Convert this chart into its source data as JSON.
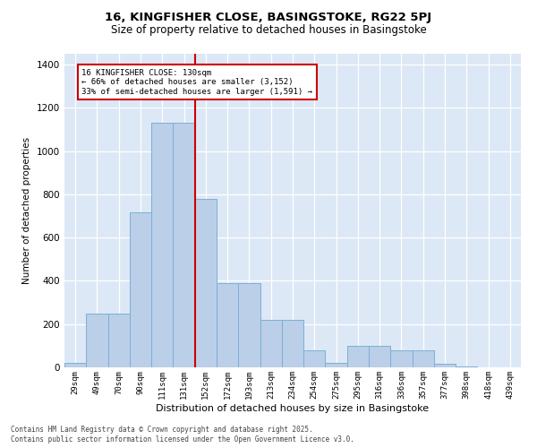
{
  "title1": "16, KINGFISHER CLOSE, BASINGSTOKE, RG22 5PJ",
  "title2": "Size of property relative to detached houses in Basingstoke",
  "xlabel": "Distribution of detached houses by size in Basingstoke",
  "ylabel": "Number of detached properties",
  "categories": [
    "29sqm",
    "49sqm",
    "70sqm",
    "90sqm",
    "111sqm",
    "131sqm",
    "152sqm",
    "172sqm",
    "193sqm",
    "213sqm",
    "234sqm",
    "254sqm",
    "275sqm",
    "295sqm",
    "316sqm",
    "336sqm",
    "357sqm",
    "377sqm",
    "398sqm",
    "418sqm",
    "439sqm"
  ],
  "values": [
    20,
    248,
    248,
    718,
    1130,
    1130,
    778,
    388,
    388,
    220,
    220,
    78,
    20,
    100,
    100,
    78,
    78,
    18,
    5,
    0,
    0
  ],
  "bar_color": "#BBCFE8",
  "bar_edge_color": "#7BAFD4",
  "vline_x": 5.5,
  "vline_color": "#CC0000",
  "annotation_text": "16 KINGFISHER CLOSE: 130sqm\n← 66% of detached houses are smaller (3,152)\n33% of semi-detached houses are larger (1,591) →",
  "annotation_box_color": "#FFFFFF",
  "annotation_box_edge": "#CC0000",
  "bg_color": "#DCE8F5",
  "footer1": "Contains HM Land Registry data © Crown copyright and database right 2025.",
  "footer2": "Contains public sector information licensed under the Open Government Licence v3.0.",
  "ylim": [
    0,
    1450
  ],
  "yticks": [
    0,
    200,
    400,
    600,
    800,
    1000,
    1200,
    1400
  ]
}
